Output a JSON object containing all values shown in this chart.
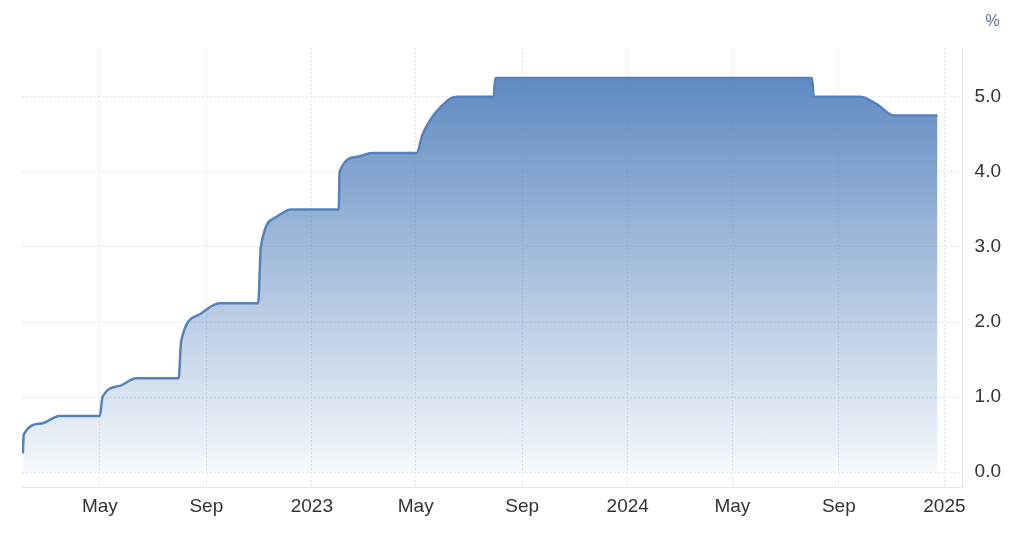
{
  "chart_data": {
    "type": "area",
    "ylabel": "%",
    "color": "#5482bd",
    "x": [
      "2022-02-01",
      "2022-02-02",
      "2022-02-23",
      "2022-03-15",
      "2022-05-01",
      "2022-05-04",
      "2022-05-24",
      "2022-06-12",
      "2022-07-31",
      "2022-08-03",
      "2022-08-24",
      "2022-09-16",
      "2022-10-31",
      "2022-11-03",
      "2022-11-21",
      "2022-12-08",
      "2023-02-01",
      "2023-02-02",
      "2023-02-22",
      "2023-03-11",
      "2023-05-02",
      "2023-05-09",
      "2023-06-07",
      "2023-06-19",
      "2023-07-30",
      "2023-08-01",
      "2024-08-01",
      "2024-08-03",
      "2024-09-25",
      "2024-10-15",
      "2024-11-04",
      "2024-12-24"
    ],
    "values": [
      0.25,
      0.5,
      0.65,
      0.75,
      0.75,
      1.0,
      1.15,
      1.25,
      1.25,
      1.75,
      2.1,
      2.25,
      2.25,
      3.0,
      3.4,
      3.5,
      3.5,
      4.0,
      4.2,
      4.25,
      4.25,
      4.5,
      4.95,
      5.0,
      5.0,
      5.25,
      5.25,
      5.0,
      5.0,
      4.9,
      4.75,
      4.75
    ],
    "xlim": [
      "2022-01-31",
      "2025-01-22"
    ],
    "xticks": [
      {
        "value": "2022-05-01",
        "label": "May"
      },
      {
        "value": "2022-09-01",
        "label": "Sep"
      },
      {
        "value": "2023-01-01",
        "label": "2023"
      },
      {
        "value": "2023-05-01",
        "label": "May"
      },
      {
        "value": "2023-09-01",
        "label": "Sep"
      },
      {
        "value": "2024-01-01",
        "label": "2024"
      },
      {
        "value": "2024-05-01",
        "label": "May"
      },
      {
        "value": "2024-09-01",
        "label": "Sep"
      },
      {
        "value": "2025-01-01",
        "label": "2025"
      }
    ],
    "ylim": [
      -0.2,
      5.65
    ],
    "yticks": [
      {
        "value": 0,
        "label": "0.0"
      },
      {
        "value": 1,
        "label": "1.0"
      },
      {
        "value": 2,
        "label": "2.0"
      },
      {
        "value": 3,
        "label": "3.0"
      },
      {
        "value": 4,
        "label": "4.0"
      },
      {
        "value": 5,
        "label": "5.0"
      }
    ],
    "grid": true,
    "legend": false
  }
}
